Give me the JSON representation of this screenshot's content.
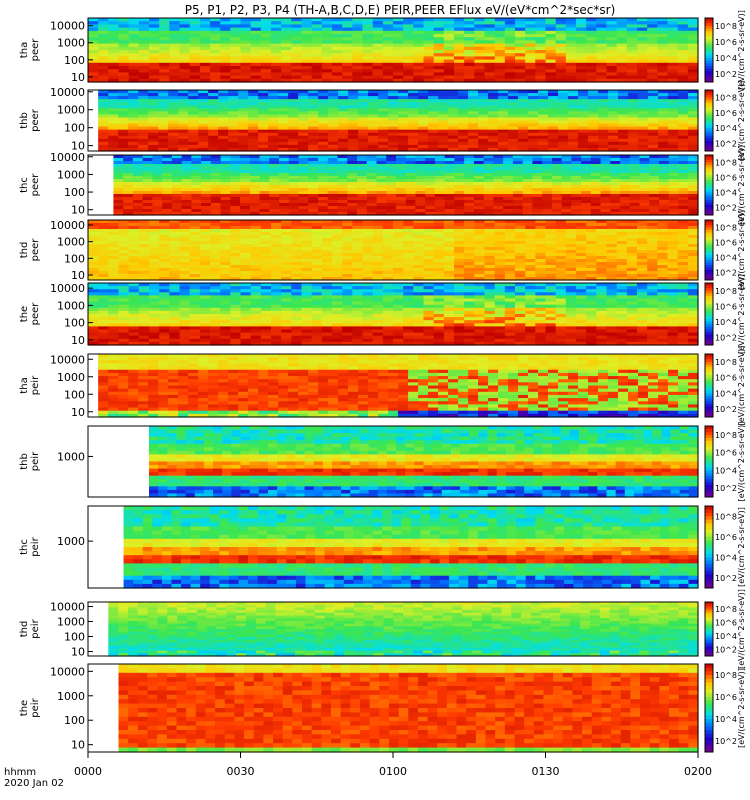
{
  "chart_data": {
    "type": "heatmap",
    "title": "P5, P1, P2, P3, P4 (TH-A,B,C,D,E) PEIR,PEER EFlux eV/(eV*cm^2*sec*sr)",
    "x_axis": {
      "label_line1": "hhmm",
      "label_line2": "2020 Jan 02",
      "range": [
        "0000",
        "0200"
      ],
      "ticks": [
        "0000",
        "0030",
        "0100",
        "0130",
        "0200"
      ]
    },
    "colorbar": {
      "label": "[eV/(cm^2-s-sr-eV)]",
      "ticks": [
        "10^2",
        "10^4",
        "10^6",
        "10^8"
      ]
    },
    "panels": [
      {
        "probe": "tha",
        "product": "peer",
        "y_ticks": [
          "10",
          "100",
          "1000",
          "10000"
        ],
        "y_log_range": [
          0.7,
          4.45
        ],
        "data_start": "0000",
        "profile": "electron_mixed"
      },
      {
        "probe": "thb",
        "product": "peer",
        "y_ticks": [
          "10",
          "100",
          "1000",
          "10000"
        ],
        "y_log_range": [
          0.7,
          4.1
        ],
        "data_start": "0002",
        "profile": "electron_banded"
      },
      {
        "probe": "thc",
        "product": "peer",
        "y_ticks": [
          "10",
          "100",
          "1000",
          "10000"
        ],
        "y_log_range": [
          0.7,
          4.1
        ],
        "data_start": "0005",
        "profile": "electron_banded"
      },
      {
        "probe": "thd",
        "product": "peer",
        "y_ticks": [
          "10",
          "100",
          "1000",
          "10000"
        ],
        "y_log_range": [
          0.7,
          4.3
        ],
        "data_start": "0000",
        "profile": "electron_hot"
      },
      {
        "probe": "the",
        "product": "peer",
        "y_ticks": [
          "10",
          "100",
          "1000",
          "10000"
        ],
        "y_log_range": [
          0.7,
          4.3
        ],
        "data_start": "0000",
        "profile": "electron_mixed"
      },
      {
        "probe": "tha",
        "product": "peir",
        "y_ticks": [
          "10",
          "100",
          "1000",
          "10000"
        ],
        "y_log_range": [
          0.7,
          4.3
        ],
        "data_start": "0002",
        "profile": "ion_mixed"
      },
      {
        "probe": "thb",
        "product": "peir",
        "y_ticks": [
          "1000"
        ],
        "y_log_range": [
          2.2,
          3.6
        ],
        "data_start": "0012",
        "profile": "ion_banded"
      },
      {
        "probe": "thc",
        "product": "peir",
        "y_ticks": [
          "1000"
        ],
        "y_log_range": [
          2.2,
          3.6
        ],
        "data_start": "0007",
        "profile": "ion_banded"
      },
      {
        "probe": "thd",
        "product": "peir",
        "y_ticks": [
          "10",
          "100",
          "1000",
          "10000"
        ],
        "y_log_range": [
          0.7,
          4.3
        ],
        "data_start": "0004",
        "profile": "ion_cool"
      },
      {
        "probe": "the",
        "product": "peir",
        "y_ticks": [
          "10",
          "100",
          "1000",
          "10000"
        ],
        "y_log_range": [
          0.7,
          4.3
        ],
        "data_start": "0006",
        "profile": "ion_hot"
      }
    ]
  }
}
